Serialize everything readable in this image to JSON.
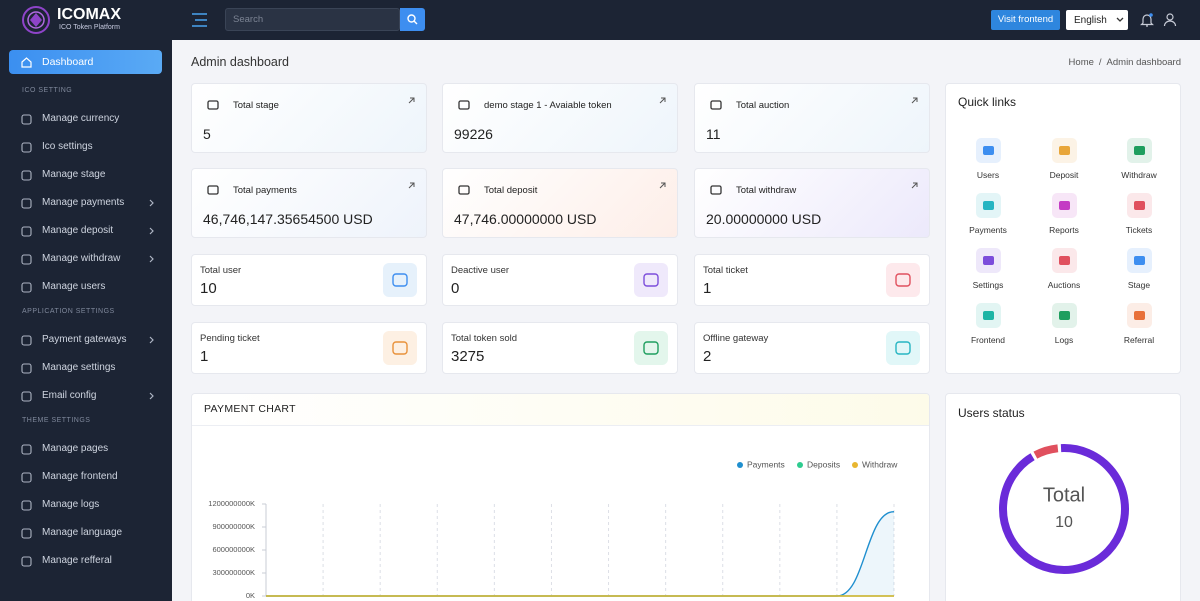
{
  "brand": {
    "name": "ICOMAX",
    "tagline": "ICO Token Platform"
  },
  "topbar": {
    "search_placeholder": "Search",
    "visit_frontend": "Visit frontend",
    "language": "English"
  },
  "sidebar": {
    "dashboard": "Dashboard",
    "sections": [
      {
        "heading": "ICO SETTING",
        "items": [
          {
            "label": "Manage currency"
          },
          {
            "label": "Ico settings"
          },
          {
            "label": "Manage stage"
          },
          {
            "label": "Manage payments",
            "submenu": true
          },
          {
            "label": "Manage deposit",
            "submenu": true
          },
          {
            "label": "Manage withdraw",
            "submenu": true
          },
          {
            "label": "Manage users"
          }
        ]
      },
      {
        "heading": "APPLICATION SETTINGS",
        "items": [
          {
            "label": "Payment gateways",
            "submenu": true
          },
          {
            "label": "Manage settings"
          },
          {
            "label": "Email config",
            "submenu": true
          }
        ]
      },
      {
        "heading": "THEME SETTINGS",
        "items": [
          {
            "label": "Manage pages"
          },
          {
            "label": "Manage frontend"
          },
          {
            "label": "Manage logs"
          },
          {
            "label": "Manage language"
          },
          {
            "label": "Manage refferal"
          }
        ]
      }
    ]
  },
  "page": {
    "title": "Admin dashboard",
    "breadcrumb": [
      "Home",
      "Admin dashboard"
    ],
    "breadcrumb_separator": "/"
  },
  "stats": [
    {
      "label": "Total stage",
      "value": "5"
    },
    {
      "label": "demo stage 1 - Avaiable token",
      "value": "99226"
    },
    {
      "label": "Total auction",
      "value": "11"
    },
    {
      "label": "Total payments",
      "value": "46,746,147.35654500 USD"
    },
    {
      "label": "Total deposit",
      "value": "47,746.00000000 USD"
    },
    {
      "label": "Total withdraw",
      "value": "20.00000000 USD"
    }
  ],
  "counts": [
    {
      "label": "Total user",
      "value": "10"
    },
    {
      "label": "Deactive user",
      "value": "0"
    },
    {
      "label": "Total ticket",
      "value": "1"
    },
    {
      "label": "Pending ticket",
      "value": "1"
    },
    {
      "label": "Total token sold",
      "value": "3275"
    },
    {
      "label": "Offline gateway",
      "value": "2"
    }
  ],
  "quick_links": {
    "title": "Quick links",
    "items": [
      "Users",
      "Deposit",
      "Withdraw",
      "Payments",
      "Reports",
      "Tickets",
      "Settings",
      "Auctions",
      "Stage",
      "Frontend",
      "Logs",
      "Referral"
    ]
  },
  "chart_data": [
    {
      "type": "line",
      "title": "PAYMENT CHART",
      "categories": [
        null,
        null,
        null,
        null,
        null,
        null,
        null,
        null,
        null,
        null,
        null,
        null
      ],
      "series": [
        {
          "name": "Payments",
          "color": "#1f8fcf",
          "values": [
            0,
            0,
            0,
            0,
            0,
            0,
            0,
            0,
            0,
            0,
            0,
            1100000000
          ]
        },
        {
          "name": "Deposits",
          "color": "#2ecc8f",
          "values": [
            0,
            0,
            0,
            0,
            0,
            0,
            0,
            0,
            0,
            0,
            0,
            0
          ]
        },
        {
          "name": "Withdraw",
          "color": "#e8b630",
          "values": [
            0,
            0,
            0,
            0,
            0,
            0,
            0,
            0,
            0,
            0,
            0,
            0
          ]
        }
      ],
      "ylim": [
        0,
        1200000000
      ],
      "yticks": [
        {
          "value": 0,
          "label": "0K"
        },
        {
          "value": 300000000,
          "label": "300000000K"
        },
        {
          "value": 600000000,
          "label": "600000000K"
        },
        {
          "value": 900000000,
          "label": "900000000K"
        },
        {
          "value": 1200000000,
          "label": "1200000000K"
        }
      ],
      "legend": "top-right",
      "grid": "x"
    },
    {
      "type": "donut",
      "title": "Users status",
      "center_label": "Total",
      "center_value": "10",
      "values": [
        7,
        93
      ],
      "colors": [
        "#e0505e",
        "#6a2bd9"
      ]
    }
  ]
}
